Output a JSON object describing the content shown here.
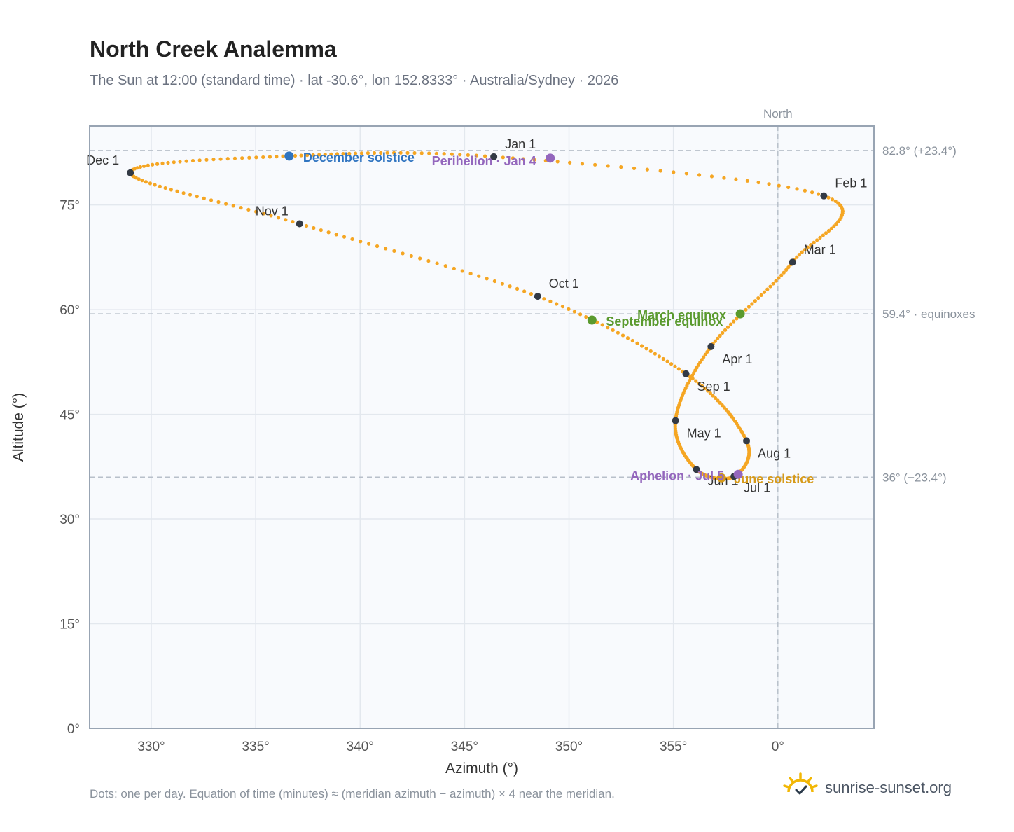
{
  "title": "North Creek Analemma",
  "subtitle": "The Sun at 12:00 (standard time) · lat -30.6°, lon 152.8333° · Australia/Sydney · 2026",
  "footnote": "Dots: one per day. Equation of time (minutes) ≈ (meridian azimuth − azimuth) × 4 near the meridian.",
  "brand": "sunrise-sunset.org",
  "colors": {
    "path": "#f5a623",
    "month_dot": "#333a45",
    "equinox": "#5a9a2e",
    "december_solstice": "#2f74c0",
    "june_solstice": "#d69a1a",
    "apsis": "#9467bd",
    "reference_line": "#b8c0ca",
    "plot_bg": "#f8fafd",
    "grid": "#e3e8ee",
    "frame": "#98a4b3"
  },
  "chart_data": {
    "type": "scatter",
    "title": "North Creek Analemma",
    "xlabel": "Azimuth (°)",
    "ylabel": "Altitude (°)",
    "xlim": [
      -32.95,
      4.6
    ],
    "ylim": [
      0,
      86.3
    ],
    "x_ticks": [
      -30,
      -25,
      -20,
      -15,
      -10,
      -5,
      0
    ],
    "x_tick_labels": [
      "330°",
      "335°",
      "340°",
      "345°",
      "350°",
      "355°",
      "0°"
    ],
    "y_ticks": [
      0,
      15,
      30,
      45,
      60,
      75
    ],
    "y_tick_labels": [
      "0°",
      "15°",
      "30°",
      "45°",
      "60°",
      "75°"
    ],
    "meridian": {
      "azimuth": 0,
      "label": "North"
    },
    "reference_lines": [
      {
        "altitude": 82.8,
        "label": "82.8° (+23.4°)"
      },
      {
        "altitude": 59.4,
        "label": "59.4° · equinoxes"
      },
      {
        "altitude": 36.0,
        "label": "36° (−23.4°)"
      }
    ],
    "month_points": [
      {
        "label": "Jan 1",
        "az": -13.6,
        "alt": 81.9
      },
      {
        "label": "Feb 1",
        "az": 2.2,
        "alt": 76.3
      },
      {
        "label": "Mar 1",
        "az": 0.7,
        "alt": 66.8
      },
      {
        "label": "Apr 1",
        "az": -3.2,
        "alt": 54.7
      },
      {
        "label": "May 1",
        "az": -4.9,
        "alt": 44.1
      },
      {
        "label": "Jun 1",
        "az": -3.9,
        "alt": 37.1
      },
      {
        "label": "Jul 1",
        "az": -2.1,
        "alt": 36.1
      },
      {
        "label": "Aug 1",
        "az": -1.5,
        "alt": 41.2
      },
      {
        "label": "Sep 1",
        "az": -4.4,
        "alt": 50.8
      },
      {
        "label": "Oct 1",
        "az": -11.5,
        "alt": 61.9
      },
      {
        "label": "Nov 1",
        "az": -22.9,
        "alt": 72.3
      },
      {
        "label": "Dec 1",
        "az": -31.0,
        "alt": 79.6
      }
    ],
    "events": [
      {
        "label": "December solstice",
        "az": -23.4,
        "alt": 82.0,
        "color": "#2f74c0"
      },
      {
        "label": "Perihelion · Jan 4",
        "az": -10.9,
        "alt": 81.7,
        "color": "#9467bd"
      },
      {
        "label": "March equinox",
        "az": -1.8,
        "alt": 59.4,
        "color": "#5a9a2e"
      },
      {
        "label": "September equinox",
        "az": -8.9,
        "alt": 58.5,
        "color": "#5a9a2e"
      },
      {
        "label": "June solstice",
        "az": -2.7,
        "alt": 35.9,
        "color": "#d69a1a"
      },
      {
        "label": "Aphelion · Jul 5",
        "az": -1.9,
        "alt": 36.4,
        "color": "#9467bd"
      }
    ]
  }
}
